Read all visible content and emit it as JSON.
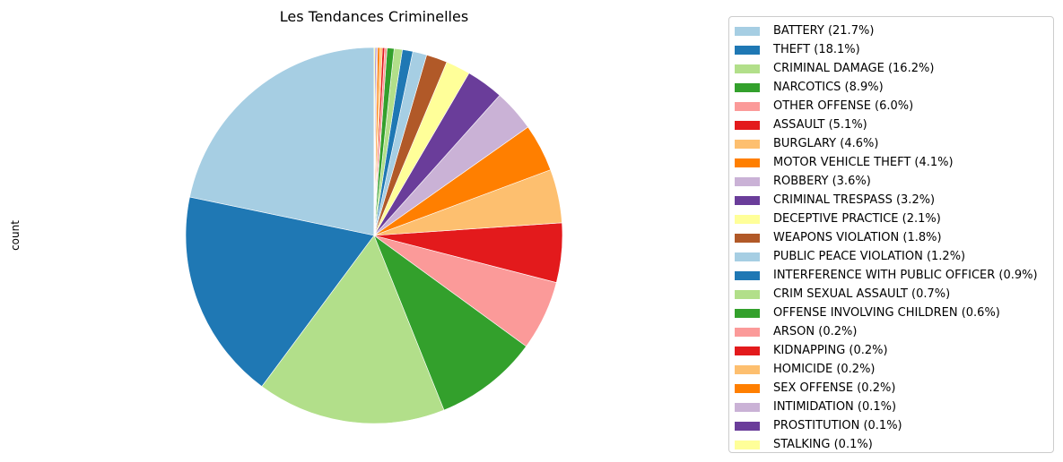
{
  "chart_data": {
    "type": "pie",
    "title": "Les Tendances Criminelles",
    "ylabel": "count",
    "legend_position": "right",
    "slices": [
      {
        "label": "BATTERY",
        "pct_label": "21.7%",
        "value": 21.7,
        "color": "#a6cee3"
      },
      {
        "label": "THEFT",
        "pct_label": "18.1%",
        "value": 18.1,
        "color": "#1f78b4"
      },
      {
        "label": "CRIMINAL DAMAGE",
        "pct_label": "16.2%",
        "value": 16.2,
        "color": "#b2df8a"
      },
      {
        "label": "NARCOTICS",
        "pct_label": "8.9%",
        "value": 8.9,
        "color": "#33a02c"
      },
      {
        "label": "OTHER OFFENSE",
        "pct_label": "6.0%",
        "value": 6.0,
        "color": "#fb9a99"
      },
      {
        "label": "ASSAULT",
        "pct_label": "5.1%",
        "value": 5.1,
        "color": "#e31a1c"
      },
      {
        "label": "BURGLARY",
        "pct_label": "4.6%",
        "value": 4.6,
        "color": "#fdbf6f"
      },
      {
        "label": "MOTOR VEHICLE THEFT",
        "pct_label": "4.1%",
        "value": 4.1,
        "color": "#ff7f00"
      },
      {
        "label": "ROBBERY",
        "pct_label": "3.6%",
        "value": 3.6,
        "color": "#cab2d6"
      },
      {
        "label": "CRIMINAL TRESPASS",
        "pct_label": "3.2%",
        "value": 3.2,
        "color": "#6a3d9a"
      },
      {
        "label": "DECEPTIVE PRACTICE",
        "pct_label": "2.1%",
        "value": 2.1,
        "color": "#ffff99"
      },
      {
        "label": "WEAPONS VIOLATION",
        "pct_label": "1.8%",
        "value": 1.8,
        "color": "#b15928"
      },
      {
        "label": "PUBLIC PEACE VIOLATION",
        "pct_label": "1.2%",
        "value": 1.2,
        "color": "#a6cee3"
      },
      {
        "label": "INTERFERENCE WITH PUBLIC OFFICER",
        "pct_label": "0.9%",
        "value": 0.9,
        "color": "#1f78b4"
      },
      {
        "label": "CRIM SEXUAL ASSAULT",
        "pct_label": "0.7%",
        "value": 0.7,
        "color": "#b2df8a"
      },
      {
        "label": "OFFENSE INVOLVING CHILDREN",
        "pct_label": "0.6%",
        "value": 0.6,
        "color": "#33a02c"
      },
      {
        "label": "ARSON",
        "pct_label": "0.2%",
        "value": 0.2,
        "color": "#fb9a99"
      },
      {
        "label": "KIDNAPPING",
        "pct_label": "0.2%",
        "value": 0.2,
        "color": "#e31a1c"
      },
      {
        "label": "HOMICIDE",
        "pct_label": "0.2%",
        "value": 0.2,
        "color": "#fdbf6f"
      },
      {
        "label": "SEX OFFENSE",
        "pct_label": "0.2%",
        "value": 0.2,
        "color": "#ff7f00"
      },
      {
        "label": "INTIMIDATION",
        "pct_label": "0.1%",
        "value": 0.1,
        "color": "#cab2d6"
      },
      {
        "label": "PROSTITUTION",
        "pct_label": "0.1%",
        "value": 0.1,
        "color": "#6a3d9a"
      },
      {
        "label": "STALKING",
        "pct_label": "0.1%",
        "value": 0.1,
        "color": "#ffff99"
      }
    ]
  }
}
